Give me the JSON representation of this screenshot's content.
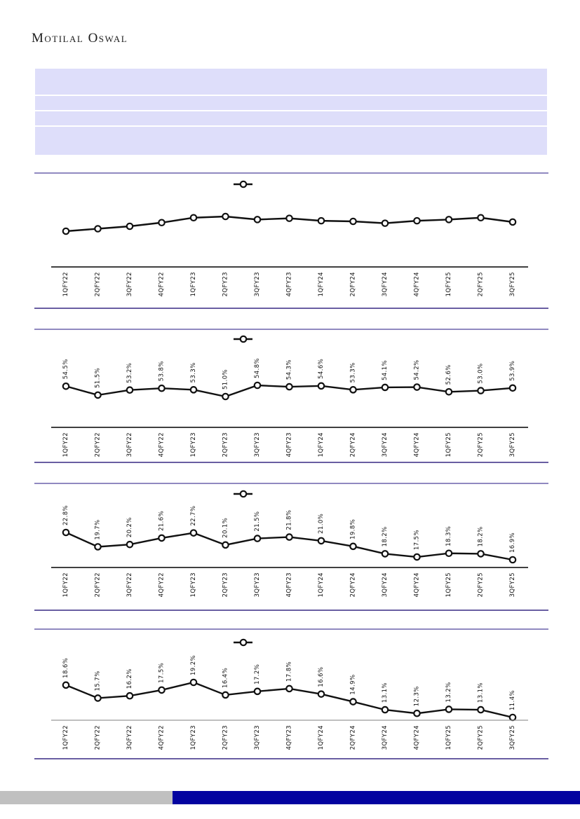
{
  "brand": {
    "logo": "Motilal Oswal"
  },
  "header_panel": {
    "background_color": "#dedefa",
    "row_count": 4,
    "text": ""
  },
  "colors": {
    "chart_border_top": "#9089c0",
    "chart_border_bottom": "#695ea2",
    "series_line": "#111111",
    "marker_fill": "#ffffff",
    "footer_gray": "#c0c0c0",
    "footer_blue": "#0303a0"
  },
  "chart_data": [
    {
      "type": "line",
      "title": "",
      "legend": "marker only, no text",
      "categories": [
        "1QFY22",
        "2QFY22",
        "3QFY22",
        "4QFY22",
        "1QFY23",
        "2QFY23",
        "3QFY23",
        "4QFY23",
        "1QFY24",
        "2QFY24",
        "3QFY24",
        "4QFY24",
        "1QFY25",
        "2QFY25",
        "3QFY25"
      ],
      "series": [
        {
          "name": "",
          "values": [
            30,
            34,
            38,
            44,
            52,
            54,
            49,
            51,
            47,
            46,
            43,
            47,
            49,
            52,
            45
          ]
        }
      ],
      "values_estimated": true,
      "data_labels": [],
      "xlabel": "",
      "ylabel": "",
      "grid": false
    },
    {
      "type": "line",
      "title": "",
      "legend": "marker only, no text",
      "categories": [
        "1QFY22",
        "2QFY22",
        "3QFY22",
        "4QFY22",
        "1QFY23",
        "2QFY23",
        "3QFY23",
        "4QFY23",
        "1QFY24",
        "2QFY24",
        "3QFY24",
        "4QFY24",
        "1QFY25",
        "2QFY25",
        "3QFY25"
      ],
      "series": [
        {
          "name": "",
          "values": [
            54.5,
            51.5,
            53.2,
            53.8,
            53.3,
            51.0,
            54.8,
            54.3,
            54.6,
            53.3,
            54.1,
            54.2,
            52.6,
            53.0,
            53.9
          ]
        }
      ],
      "data_labels": [
        "54.5%",
        "51.5%",
        "53.2%",
        "53.8%",
        "53.3%",
        "51.0%",
        "54.8%",
        "54.3%",
        "54.6%",
        "53.3%",
        "54.1%",
        "54.2%",
        "52.6%",
        "53.0%",
        "53.9%"
      ],
      "xlabel": "",
      "ylabel": "",
      "grid": false
    },
    {
      "type": "line",
      "title": "",
      "legend": "marker only, no text",
      "categories": [
        "1QFY22",
        "2QFY22",
        "3QFY22",
        "4QFY22",
        "1QFY23",
        "2QFY23",
        "3QFY23",
        "4QFY23",
        "1QFY24",
        "2QFY24",
        "3QFY24",
        "4QFY24",
        "1QFY25",
        "2QFY25",
        "3QFY25"
      ],
      "series": [
        {
          "name": "",
          "values": [
            22.8,
            19.7,
            20.2,
            21.6,
            22.7,
            20.1,
            21.5,
            21.8,
            21.0,
            19.8,
            18.2,
            17.5,
            18.3,
            18.2,
            16.9
          ]
        }
      ],
      "data_labels": [
        "22.8%",
        "19.7%",
        "20.2%",
        "21.6%",
        "22.7%",
        "20.1%",
        "21.5%",
        "21.8%",
        "21.0%",
        "19.8%",
        "18.2%",
        "17.5%",
        "18.3%",
        "18.2%",
        "16.9%"
      ],
      "xlabel": "",
      "ylabel": "",
      "grid": false
    },
    {
      "type": "line",
      "title": "",
      "legend": "marker only, no text",
      "categories": [
        "1QFY22",
        "2QFY22",
        "3QFY22",
        "4QFY22",
        "1QFY23",
        "2QFY23",
        "3QFY23",
        "4QFY23",
        "1QFY24",
        "2QFY24",
        "3QFY24",
        "4QFY24",
        "1QFY25",
        "2QFY25",
        "3QFY25"
      ],
      "series": [
        {
          "name": "",
          "values": [
            18.6,
            15.7,
            16.2,
            17.5,
            19.2,
            16.4,
            17.2,
            17.8,
            16.6,
            14.9,
            13.1,
            12.3,
            13.2,
            13.1,
            11.4
          ]
        }
      ],
      "data_labels": [
        "18.6%",
        "15.7%",
        "16.2%",
        "17.5%",
        "19.2%",
        "16.4%",
        "17.2%",
        "17.8%",
        "16.6%",
        "14.9%",
        "13.1%",
        "12.3%",
        "13.2%",
        "13.1%",
        "11.4%"
      ],
      "xlabel": "",
      "ylabel": "",
      "grid": false
    }
  ]
}
